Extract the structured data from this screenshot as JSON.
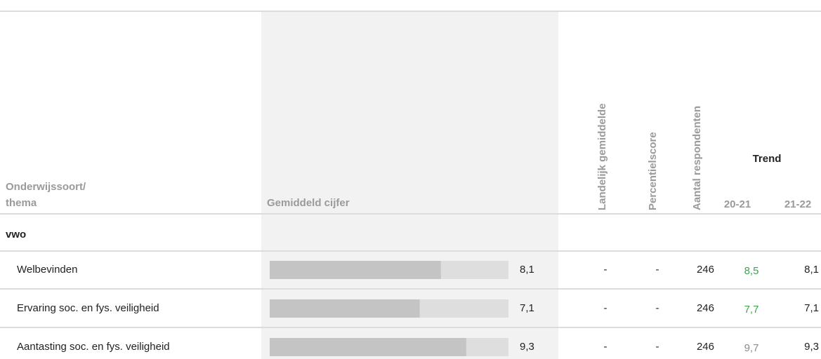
{
  "table": {
    "headers": {
      "thema": [
        "Onderwijssoort/",
        "thema"
      ],
      "gemiddeld": "Gemiddeld cijfer",
      "landelijk": "Landelijk gemiddelde",
      "percentiel": "Percentielscore",
      "respondenten": "Aantal respondenten",
      "trend": "Trend",
      "trend_years": [
        "20-21",
        "21-22"
      ]
    },
    "group": "vwo",
    "bar_lim": [
      0,
      11.3
    ],
    "bar_color": "#c4c4c4",
    "bar_track_color": "#dedede",
    "rows": [
      {
        "label": "Welbevinden",
        "value": 8.1,
        "value_label": "8,1",
        "landelijk": "-",
        "percentiel": "-",
        "respondenten": 246,
        "trend": [
          "8,5",
          "8,1"
        ],
        "trend_colors": [
          "#3aa64a",
          "#222222"
        ]
      },
      {
        "label": "Ervaring soc. en fys. veiligheid",
        "value": 7.1,
        "value_label": "7,1",
        "landelijk": "-",
        "percentiel": "-",
        "respondenten": 246,
        "trend": [
          "7,7",
          "7,1"
        ],
        "trend_colors": [
          "#3aa64a",
          "#222222"
        ]
      },
      {
        "label": "Aantasting soc. en fys. veiligheid",
        "value": 9.3,
        "value_label": "9,3",
        "landelijk": "-",
        "percentiel": "-",
        "respondenten": 246,
        "trend": [
          "9,7",
          "9,3"
        ],
        "trend_colors": [
          "#8a8a8a",
          "#222222"
        ]
      }
    ]
  }
}
